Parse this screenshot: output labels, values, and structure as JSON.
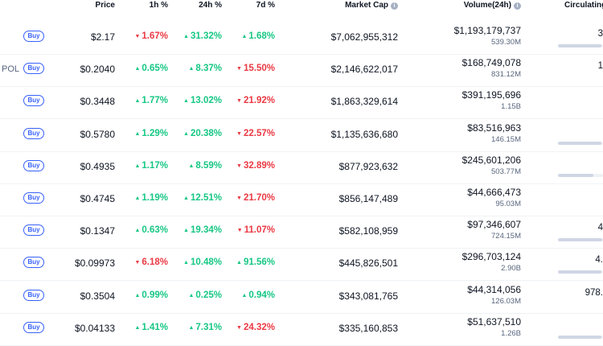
{
  "headers": {
    "price": "Price",
    "h1": "1h %",
    "h24": "24h %",
    "d7": "7d %",
    "market_cap": "Market Cap",
    "volume": "Volume(24h)",
    "circulating": "Circulating"
  },
  "buy_label": "Buy",
  "colors": {
    "up": "#16c784",
    "down": "#ea3943",
    "accent": "#3861fb"
  },
  "rows": [
    {
      "symbol": "",
      "price": "$2.17",
      "h1": "1.67%",
      "h1_dir": "down",
      "h24": "31.32%",
      "h24_dir": "up",
      "d7": "1.68%",
      "d7_dir": "up",
      "market_cap": "$7,062,955,312",
      "volume": "$1,193,179,737",
      "volume_sub": "539.30M",
      "circulating": "3",
      "supply_fraction": 0.96
    },
    {
      "symbol": "POL",
      "price": "$0.2040",
      "h1": "0.65%",
      "h1_dir": "up",
      "h24": "8.37%",
      "h24_dir": "up",
      "d7": "15.50%",
      "d7_dir": "down",
      "market_cap": "$2,146,622,017",
      "volume": "$168,749,078",
      "volume_sub": "831.12M",
      "circulating": "1",
      "supply_fraction": 0.0
    },
    {
      "symbol": "",
      "price": "$0.3448",
      "h1": "1.77%",
      "h1_dir": "up",
      "h24": "13.02%",
      "h24_dir": "up",
      "d7": "21.92%",
      "d7_dir": "down",
      "market_cap": "$1,863,329,614",
      "volume": "$391,195,696",
      "volume_sub": "1.15B",
      "circulating": "",
      "supply_fraction": 0.0
    },
    {
      "symbol": "",
      "price": "$0.5780",
      "h1": "1.29%",
      "h1_dir": "up",
      "h24": "20.38%",
      "h24_dir": "up",
      "d7": "22.57%",
      "d7_dir": "down",
      "market_cap": "$1,135,636,680",
      "volume": "$83,516,963",
      "volume_sub": "146.15M",
      "circulating": "",
      "supply_fraction": 0.96
    },
    {
      "symbol": "",
      "price": "$0.4935",
      "h1": "1.17%",
      "h1_dir": "up",
      "h24": "8.59%",
      "h24_dir": "up",
      "d7": "32.89%",
      "d7_dir": "down",
      "market_cap": "$877,923,632",
      "volume": "$245,601,206",
      "volume_sub": "503.77M",
      "circulating": "",
      "supply_fraction": 0.78
    },
    {
      "symbol": "",
      "price": "$0.4745",
      "h1": "1.19%",
      "h1_dir": "up",
      "h24": "12.51%",
      "h24_dir": "up",
      "d7": "21.70%",
      "d7_dir": "down",
      "market_cap": "$856,147,489",
      "volume": "$44,666,473",
      "volume_sub": "95.03M",
      "circulating": "",
      "supply_fraction": 0.0
    },
    {
      "symbol": "",
      "price": "$0.1347",
      "h1": "0.63%",
      "h1_dir": "up",
      "h24": "19.34%",
      "h24_dir": "up",
      "d7": "11.07%",
      "d7_dir": "down",
      "market_cap": "$582,108,959",
      "volume": "$97,346,607",
      "volume_sub": "724.15M",
      "circulating": "4",
      "supply_fraction": 0.98
    },
    {
      "symbol": "",
      "price": "$0.09973",
      "h1": "6.18%",
      "h1_dir": "down",
      "h24": "10.48%",
      "h24_dir": "up",
      "d7": "91.56%",
      "d7_dir": "up",
      "market_cap": "$445,826,501",
      "volume": "$296,703,124",
      "volume_sub": "2.90B",
      "circulating": "4.",
      "supply_fraction": 0.96
    },
    {
      "symbol": "",
      "price": "$0.3504",
      "h1": "0.99%",
      "h1_dir": "up",
      "h24": "0.25%",
      "h24_dir": "up",
      "d7": "0.94%",
      "d7_dir": "up",
      "market_cap": "$343,081,765",
      "volume": "$44,314,056",
      "volume_sub": "126.03M",
      "circulating": "978.",
      "supply_fraction": 0.0
    },
    {
      "symbol": "",
      "price": "$0.04133",
      "h1": "1.41%",
      "h1_dir": "up",
      "h24": "7.31%",
      "h24_dir": "up",
      "d7": "24.32%",
      "d7_dir": "down",
      "market_cap": "$335,160,853",
      "volume": "$51,637,510",
      "volume_sub": "1.26B",
      "circulating": "",
      "supply_fraction": 0.96
    }
  ]
}
